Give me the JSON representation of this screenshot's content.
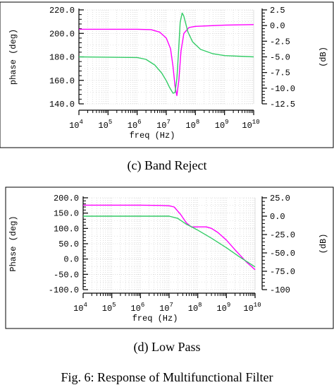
{
  "captions": {
    "c": "(c) Band Reject",
    "d": "(d) Low Pass",
    "figure": "Fig. 6: Response of Multifunctional Filter"
  },
  "colors": {
    "phase": "#ff00ff",
    "db": "#33cc66",
    "grid": "#c8c8c8"
  },
  "chart_data": [
    {
      "type": "line",
      "panel": "c",
      "xlabel": "freq (Hz)",
      "ylabel_left": "phase (deg)",
      "ylabel_right": "(dB)",
      "x_scale": "log",
      "xlim": [
        10000,
        10000000000
      ],
      "ylim_left": [
        140,
        220
      ],
      "ylim_right": [
        -12.5,
        2.5
      ],
      "grid": true,
      "x_ticks": [
        {
          "base": "10",
          "exp": "4"
        },
        {
          "base": "10",
          "exp": "5"
        },
        {
          "base": "10",
          "exp": "6"
        },
        {
          "base": "10",
          "exp": "7"
        },
        {
          "base": "10",
          "exp": "8"
        },
        {
          "base": "10",
          "exp": "9"
        },
        {
          "base": "10",
          "exp": "10"
        }
      ],
      "y_ticks_left": [
        "220.0",
        "200.0",
        "180.0",
        "160.0",
        "140.0"
      ],
      "y_ticks_right": [
        "2.5",
        "0.0",
        "-2.5",
        "-5.0",
        "-7.5",
        "-10.0",
        "-12.5"
      ],
      "series": [
        {
          "axis": "left",
          "x": [
            10000,
            1000000,
            3000000,
            6000000,
            10000000,
            14000000,
            17000000,
            20000000,
            23000000,
            27000000,
            32000000,
            40000000,
            60000000,
            100000000,
            1000000000,
            10000000000
          ],
          "y": [
            203.5,
            203.5,
            203.2,
            201,
            196,
            187,
            172,
            155,
            147,
            160,
            185,
            200,
            205,
            206,
            207,
            207.5
          ]
        },
        {
          "axis": "right",
          "x": [
            10000,
            1000000,
            2000000,
            4000000,
            7000000,
            10000000,
            13000000,
            17000000,
            20000000,
            23000000,
            26000000,
            30000000,
            35000000,
            40000000,
            55000000,
            80000000,
            150000000,
            400000000,
            1000000000,
            10000000000
          ],
          "y": [
            -5.0,
            -5.1,
            -5.4,
            -6.3,
            -7.6,
            -8.8,
            -9.9,
            -10.8,
            -10.7,
            -8.5,
            -4.5,
            0.5,
            2.0,
            1.5,
            -1.0,
            -2.6,
            -3.8,
            -4.5,
            -4.8,
            -5.0
          ]
        }
      ]
    },
    {
      "type": "line",
      "panel": "d",
      "xlabel": "freq (Hz)",
      "ylabel_left": "Phase (deg)",
      "ylabel_right": "(dB)",
      "x_scale": "log",
      "xlim": [
        10000,
        10000000000
      ],
      "ylim_left": [
        -100,
        200
      ],
      "ylim_right": [
        -100,
        25
      ],
      "grid": true,
      "x_ticks": [
        {
          "base": "10",
          "exp": "4"
        },
        {
          "base": "10",
          "exp": "5"
        },
        {
          "base": "10",
          "exp": "6"
        },
        {
          "base": "10",
          "exp": "7"
        },
        {
          "base": "10",
          "exp": "8"
        },
        {
          "base": "10",
          "exp": "9"
        },
        {
          "base": "10",
          "exp": "10"
        }
      ],
      "y_ticks_left": [
        "200.0",
        "150.0",
        "100.0",
        "50.0",
        "0.0",
        "-50.0",
        "-100.0"
      ],
      "y_ticks_right": [
        "25.0",
        "0.0",
        "-25.0",
        "-50.0",
        "-75.0",
        "-100"
      ],
      "series": [
        {
          "axis": "left",
          "x": [
            10000,
            1000000,
            5000000,
            10000000,
            15000000,
            25000000,
            40000000,
            60000000,
            100000000,
            200000000,
            300000000,
            500000000,
            1000000000,
            2000000000,
            5000000000,
            10000000000
          ],
          "y": [
            176,
            176,
            175,
            174,
            170,
            146,
            118,
            105,
            105,
            105,
            100,
            87,
            62,
            30,
            -10,
            -35
          ]
        },
        {
          "axis": "right",
          "x": [
            10000,
            1000000,
            10000000,
            20000000,
            40000000,
            100000000,
            300000000,
            1000000000,
            3000000000,
            10000000000
          ],
          "y": [
            0,
            0,
            0,
            -3,
            -11,
            -19,
            -30,
            -43,
            -56,
            -69
          ]
        }
      ]
    }
  ]
}
